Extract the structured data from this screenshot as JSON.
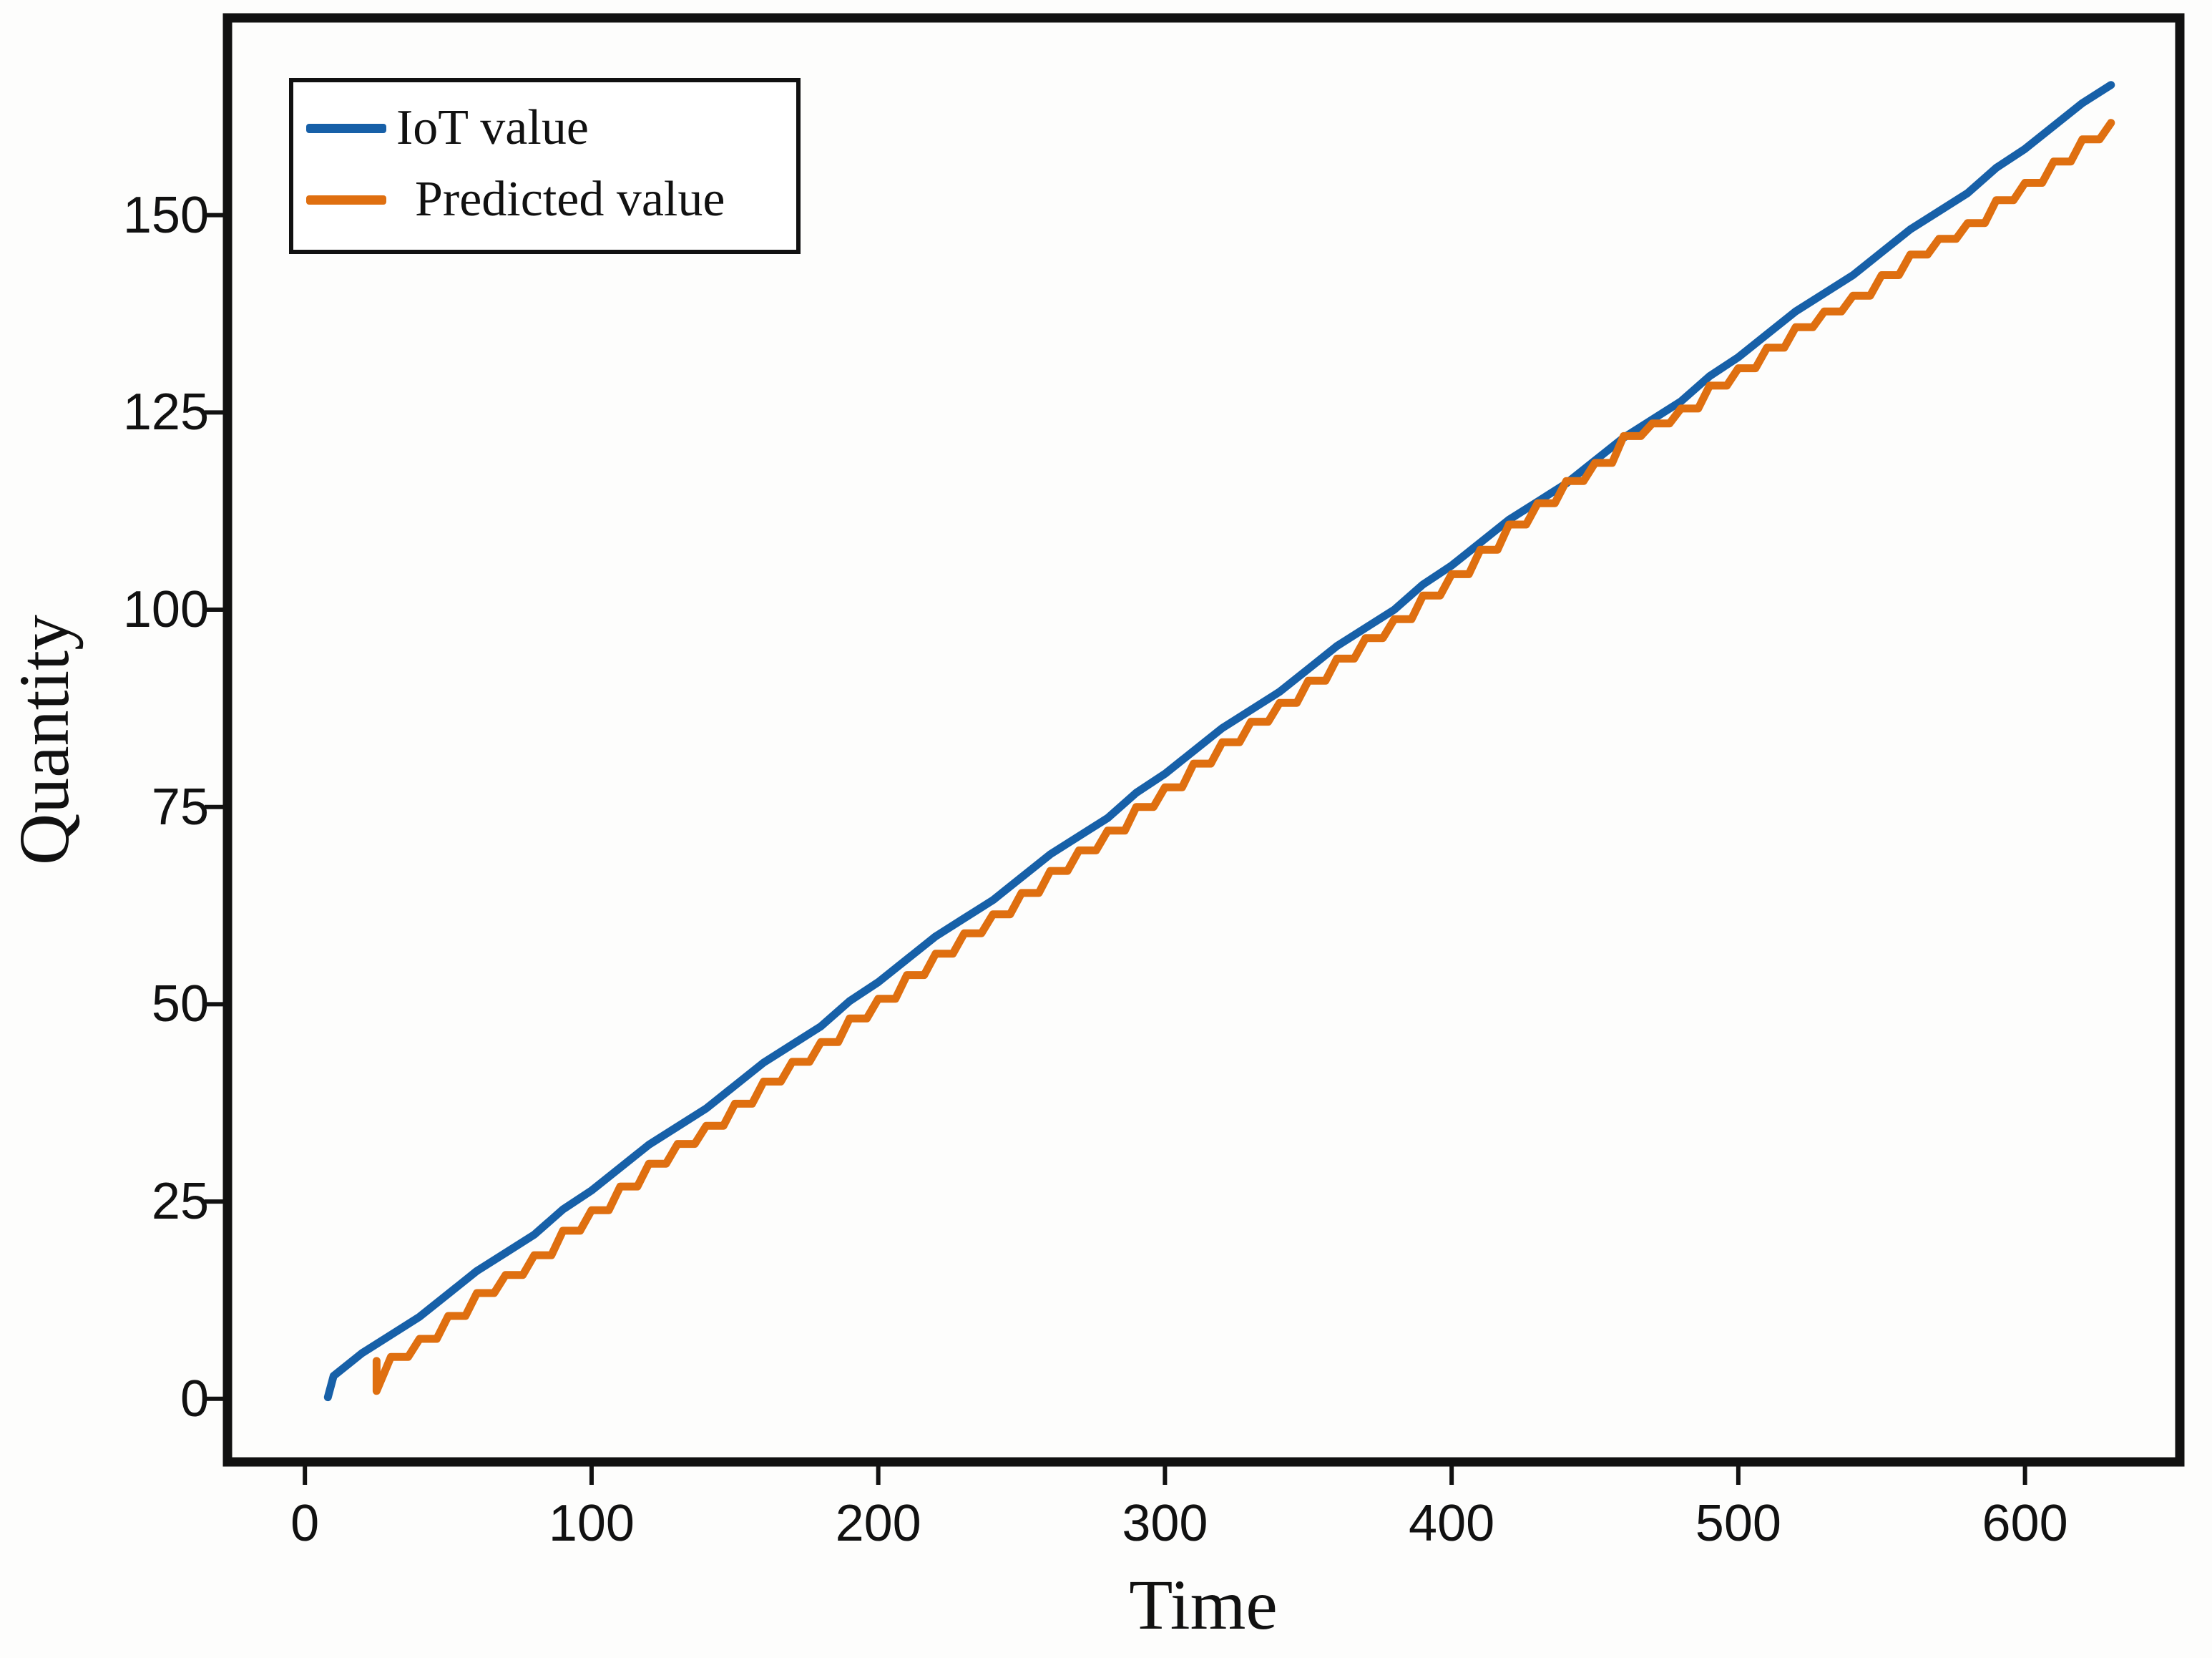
{
  "figure": {
    "background": "#fdfdfc",
    "axis_color": "#111111",
    "text_color": "#111111"
  },
  "chart_data": {
    "type": "line",
    "title": "",
    "xlabel": "Time",
    "ylabel": "Quantity",
    "xlim": [
      -27,
      654
    ],
    "ylim": [
      -8,
      175
    ],
    "x_ticks": [
      0,
      100,
      200,
      300,
      400,
      500,
      600
    ],
    "y_ticks": [
      0,
      25,
      50,
      75,
      100,
      125,
      150
    ],
    "grid": false,
    "legend": {
      "position": "upper-left",
      "border_color": "#111111",
      "background": "#ffffff"
    },
    "series": [
      {
        "name": "IoT value",
        "color": "#1760a8",
        "line_style": "solid",
        "interpolation": "linear",
        "x": [
          8,
          10,
          20,
          30,
          40,
          50,
          60,
          70,
          80,
          90,
          100,
          110,
          120,
          130,
          140,
          150,
          160,
          170,
          180,
          190,
          200,
          210,
          220,
          230,
          240,
          250,
          260,
          270,
          280,
          290,
          300,
          310,
          320,
          330,
          340,
          350,
          360,
          370,
          380,
          390,
          400,
          410,
          420,
          430,
          440,
          450,
          460,
          470,
          480,
          490,
          500,
          510,
          520,
          530,
          540,
          550,
          560,
          570,
          580,
          590,
          600,
          610,
          620,
          630
        ],
        "y": [
          0.2,
          2.9,
          5.8,
          8.1,
          10.4,
          13.3,
          16.2,
          18.5,
          20.8,
          24.0,
          26.4,
          29.3,
          32.2,
          34.5,
          36.8,
          39.7,
          42.6,
          44.9,
          47.2,
          50.4,
          52.8,
          55.7,
          58.6,
          60.9,
          63.2,
          66.1,
          69.0,
          71.3,
          73.6,
          76.8,
          79.2,
          82.1,
          85.0,
          87.3,
          89.6,
          92.5,
          95.4,
          97.7,
          100.0,
          103.2,
          105.6,
          108.5,
          111.4,
          113.7,
          116.0,
          118.9,
          121.8,
          124.1,
          126.4,
          129.6,
          132.0,
          134.9,
          137.8,
          140.1,
          142.4,
          145.3,
          148.2,
          150.5,
          152.8,
          156.0,
          158.4,
          161.3,
          164.2,
          166.5
        ]
      },
      {
        "name": "Predicted value",
        "color": "#df6f10",
        "line_style": "solid",
        "interpolation": "step",
        "x": [
          25,
          25,
          30,
          40,
          50,
          60,
          70,
          80,
          90,
          100,
          110,
          120,
          130,
          140,
          150,
          160,
          170,
          180,
          190,
          200,
          210,
          220,
          230,
          240,
          250,
          260,
          270,
          280,
          290,
          300,
          310,
          320,
          330,
          340,
          350,
          360,
          370,
          380,
          390,
          400,
          410,
          420,
          430,
          440,
          450,
          460,
          470,
          480,
          490,
          500,
          510,
          520,
          530,
          540,
          550,
          560,
          570,
          580,
          590,
          600,
          610,
          620,
          630
        ],
        "y": [
          4.8,
          1.0,
          5.3,
          7.6,
          10.5,
          13.4,
          15.7,
          18.2,
          21.3,
          23.9,
          26.9,
          29.8,
          32.3,
          34.6,
          37.4,
          40.2,
          42.7,
          45.2,
          48.2,
          50.7,
          53.7,
          56.4,
          59.0,
          61.4,
          64.1,
          66.9,
          69.5,
          72.0,
          75.0,
          77.5,
          80.5,
          83.2,
          85.8,
          88.2,
          91.0,
          93.8,
          96.4,
          98.8,
          101.8,
          104.5,
          107.6,
          110.8,
          113.5,
          116.3,
          118.6,
          122.0,
          123.6,
          125.5,
          128.4,
          130.6,
          133.2,
          135.8,
          137.8,
          139.8,
          142.4,
          145.0,
          147.0,
          149.0,
          151.9,
          154.1,
          156.8,
          159.6,
          161.7
        ]
      }
    ]
  }
}
